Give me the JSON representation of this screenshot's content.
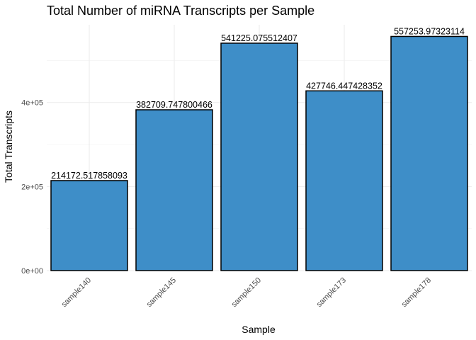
{
  "chart_data": {
    "type": "bar",
    "title": "Total Number of miRNA Transcripts per Sample",
    "xlabel": "Sample",
    "ylabel": "Total Transcripts",
    "categories": [
      "sample140",
      "sample145",
      "sample150",
      "sample173",
      "sample178"
    ],
    "values": [
      214172.517858093,
      382709.747800466,
      541225.075512407,
      427746.447428352,
      557253.97323114
    ],
    "value_labels": [
      "214172.517858093",
      "382709.747800466",
      "541225.075512407",
      "427746.447428352",
      "557253.97323114"
    ],
    "yticks": [
      0,
      200000,
      400000
    ],
    "ytick_labels": [
      "0e+00",
      "2e+05",
      "4e+05"
    ],
    "ylim": [
      0,
      585000
    ],
    "grid": true,
    "legend": "none",
    "colors": {
      "bar_fill": "#3E8EC8",
      "bar_outline": "#000000"
    }
  }
}
